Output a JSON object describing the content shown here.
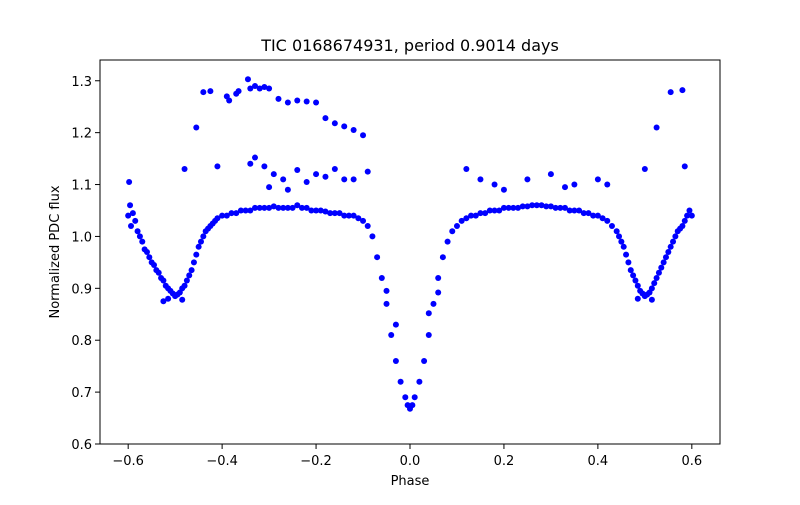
{
  "chart_data": {
    "type": "scatter",
    "title": "TIC 0168674931, period 0.9014 days",
    "xlabel": "Phase",
    "ylabel": "Normalized PDC flux",
    "xlim": [
      -0.66,
      0.66
    ],
    "ylim": [
      0.6,
      1.34
    ],
    "x_ticks": [
      -0.6,
      -0.4,
      -0.2,
      0.0,
      0.2,
      0.4,
      0.6
    ],
    "x_tick_labels": [
      "−0.6",
      "−0.4",
      "−0.2",
      "0.0",
      "0.2",
      "0.4",
      "0.6"
    ],
    "y_ticks": [
      0.6,
      0.7,
      0.8,
      0.9,
      1.0,
      1.1,
      1.2,
      1.3
    ],
    "y_tick_labels": [
      "0.6",
      "0.7",
      "0.8",
      "0.9",
      "1.0",
      "1.1",
      "1.2",
      "1.3"
    ],
    "grid": false,
    "legend": "none",
    "marker_color": "#0000ff",
    "series": [
      {
        "points": [
          [
            -0.6,
            1.04
          ],
          [
            -0.598,
            1.105
          ],
          [
            -0.596,
            1.06
          ],
          [
            -0.594,
            1.02
          ],
          [
            -0.59,
            1.045
          ],
          [
            -0.585,
            1.03
          ],
          [
            -0.58,
            1.01
          ],
          [
            -0.575,
            1.0
          ],
          [
            -0.57,
            0.99
          ],
          [
            -0.565,
            0.975
          ],
          [
            -0.56,
            0.97
          ],
          [
            -0.555,
            0.96
          ],
          [
            -0.55,
            0.95
          ],
          [
            -0.545,
            0.945
          ],
          [
            -0.54,
            0.935
          ],
          [
            -0.535,
            0.93
          ],
          [
            -0.53,
            0.92
          ],
          [
            -0.525,
            0.915
          ],
          [
            -0.52,
            0.905
          ],
          [
            -0.515,
            0.9
          ],
          [
            -0.51,
            0.895
          ],
          [
            -0.505,
            0.89
          ],
          [
            -0.5,
            0.885
          ],
          [
            -0.495,
            0.888
          ],
          [
            -0.49,
            0.892
          ],
          [
            -0.485,
            0.9
          ],
          [
            -0.48,
            0.905
          ],
          [
            -0.475,
            0.915
          ],
          [
            -0.47,
            0.925
          ],
          [
            -0.465,
            0.935
          ],
          [
            -0.46,
            0.95
          ],
          [
            -0.455,
            0.965
          ],
          [
            -0.45,
            0.98
          ],
          [
            -0.445,
            0.99
          ],
          [
            -0.44,
            1.0
          ],
          [
            -0.435,
            1.01
          ],
          [
            -0.43,
            1.015
          ],
          [
            -0.425,
            1.02
          ],
          [
            -0.42,
            1.025
          ],
          [
            -0.415,
            1.03
          ],
          [
            -0.41,
            1.035
          ],
          [
            -0.4,
            1.04
          ],
          [
            -0.39,
            1.04
          ],
          [
            -0.38,
            1.045
          ],
          [
            -0.37,
            1.045
          ],
          [
            -0.36,
            1.05
          ],
          [
            -0.35,
            1.05
          ],
          [
            -0.34,
            1.05
          ],
          [
            -0.33,
            1.055
          ],
          [
            -0.32,
            1.055
          ],
          [
            -0.31,
            1.055
          ],
          [
            -0.3,
            1.055
          ],
          [
            -0.29,
            1.058
          ],
          [
            -0.28,
            1.055
          ],
          [
            -0.27,
            1.055
          ],
          [
            -0.26,
            1.055
          ],
          [
            -0.25,
            1.055
          ],
          [
            -0.24,
            1.06
          ],
          [
            -0.23,
            1.055
          ],
          [
            -0.22,
            1.055
          ],
          [
            -0.21,
            1.05
          ],
          [
            -0.2,
            1.05
          ],
          [
            -0.19,
            1.05
          ],
          [
            -0.18,
            1.048
          ],
          [
            -0.17,
            1.045
          ],
          [
            -0.16,
            1.045
          ],
          [
            -0.15,
            1.045
          ],
          [
            -0.14,
            1.04
          ],
          [
            -0.13,
            1.04
          ],
          [
            -0.12,
            1.04
          ],
          [
            -0.11,
            1.035
          ],
          [
            -0.1,
            1.03
          ],
          [
            -0.09,
            1.02
          ],
          [
            -0.08,
            1.0
          ],
          [
            -0.07,
            0.96
          ],
          [
            -0.06,
            0.92
          ],
          [
            -0.05,
            0.87
          ],
          [
            -0.04,
            0.81
          ],
          [
            -0.03,
            0.76
          ],
          [
            -0.02,
            0.72
          ],
          [
            -0.01,
            0.69
          ],
          [
            -0.005,
            0.675
          ],
          [
            0.0,
            0.668
          ],
          [
            0.005,
            0.675
          ],
          [
            0.01,
            0.69
          ],
          [
            0.02,
            0.72
          ],
          [
            0.03,
            0.76
          ],
          [
            0.04,
            0.81
          ],
          [
            0.05,
            0.87
          ],
          [
            0.06,
            0.92
          ],
          [
            0.07,
            0.96
          ],
          [
            0.08,
            0.99
          ],
          [
            0.09,
            1.01
          ],
          [
            0.1,
            1.02
          ],
          [
            0.11,
            1.03
          ],
          [
            0.12,
            1.035
          ],
          [
            0.13,
            1.04
          ],
          [
            0.14,
            1.04
          ],
          [
            0.15,
            1.045
          ],
          [
            0.16,
            1.045
          ],
          [
            0.17,
            1.05
          ],
          [
            0.18,
            1.05
          ],
          [
            0.19,
            1.05
          ],
          [
            0.2,
            1.055
          ],
          [
            0.21,
            1.055
          ],
          [
            0.22,
            1.055
          ],
          [
            0.23,
            1.055
          ],
          [
            0.24,
            1.058
          ],
          [
            0.25,
            1.058
          ],
          [
            0.26,
            1.06
          ],
          [
            0.27,
            1.06
          ],
          [
            0.28,
            1.06
          ],
          [
            0.29,
            1.058
          ],
          [
            0.3,
            1.058
          ],
          [
            0.31,
            1.055
          ],
          [
            0.32,
            1.055
          ],
          [
            0.33,
            1.055
          ],
          [
            0.34,
            1.05
          ],
          [
            0.35,
            1.05
          ],
          [
            0.36,
            1.05
          ],
          [
            0.37,
            1.045
          ],
          [
            0.38,
            1.045
          ],
          [
            0.39,
            1.04
          ],
          [
            0.4,
            1.04
          ],
          [
            0.41,
            1.035
          ],
          [
            0.42,
            1.03
          ],
          [
            0.43,
            1.02
          ],
          [
            0.44,
            1.01
          ],
          [
            0.445,
            1.0
          ],
          [
            0.45,
            0.99
          ],
          [
            0.455,
            0.98
          ],
          [
            0.46,
            0.965
          ],
          [
            0.465,
            0.95
          ],
          [
            0.47,
            0.935
          ],
          [
            0.475,
            0.925
          ],
          [
            0.48,
            0.915
          ],
          [
            0.485,
            0.905
          ],
          [
            0.49,
            0.895
          ],
          [
            0.495,
            0.89
          ],
          [
            0.5,
            0.885
          ],
          [
            0.505,
            0.888
          ],
          [
            0.51,
            0.892
          ],
          [
            0.515,
            0.9
          ],
          [
            0.52,
            0.91
          ],
          [
            0.525,
            0.92
          ],
          [
            0.53,
            0.93
          ],
          [
            0.535,
            0.94
          ],
          [
            0.54,
            0.95
          ],
          [
            0.545,
            0.96
          ],
          [
            0.55,
            0.97
          ],
          [
            0.555,
            0.98
          ],
          [
            0.56,
            0.99
          ],
          [
            0.565,
            1.0
          ],
          [
            0.57,
            1.01
          ],
          [
            0.575,
            1.015
          ],
          [
            0.58,
            1.02
          ],
          [
            0.585,
            1.03
          ],
          [
            0.59,
            1.04
          ],
          [
            0.595,
            1.05
          ],
          [
            0.6,
            1.04
          ],
          [
            -0.525,
            0.875
          ],
          [
            -0.515,
            0.88
          ],
          [
            -0.485,
            0.878
          ],
          [
            0.485,
            0.88
          ],
          [
            0.515,
            0.878
          ],
          [
            -0.48,
            1.13
          ],
          [
            -0.455,
            1.21
          ],
          [
            -0.44,
            1.278
          ],
          [
            -0.425,
            1.28
          ],
          [
            -0.41,
            1.135
          ],
          [
            -0.39,
            1.27
          ],
          [
            -0.385,
            1.262
          ],
          [
            -0.37,
            1.275
          ],
          [
            -0.365,
            1.28
          ],
          [
            -0.345,
            1.303
          ],
          [
            -0.34,
            1.285
          ],
          [
            -0.33,
            1.29
          ],
          [
            -0.32,
            1.285
          ],
          [
            -0.31,
            1.288
          ],
          [
            -0.3,
            1.285
          ],
          [
            -0.28,
            1.265
          ],
          [
            -0.26,
            1.258
          ],
          [
            -0.24,
            1.262
          ],
          [
            -0.22,
            1.26
          ],
          [
            -0.2,
            1.258
          ],
          [
            -0.18,
            1.228
          ],
          [
            -0.16,
            1.218
          ],
          [
            -0.14,
            1.212
          ],
          [
            -0.12,
            1.205
          ],
          [
            -0.1,
            1.195
          ],
          [
            -0.34,
            1.14
          ],
          [
            -0.33,
            1.152
          ],
          [
            -0.31,
            1.135
          ],
          [
            -0.29,
            1.12
          ],
          [
            -0.27,
            1.11
          ],
          [
            -0.24,
            1.128
          ],
          [
            -0.22,
            1.105
          ],
          [
            -0.2,
            1.12
          ],
          [
            -0.18,
            1.115
          ],
          [
            -0.16,
            1.13
          ],
          [
            -0.14,
            1.11
          ],
          [
            -0.12,
            1.11
          ],
          [
            -0.09,
            1.125
          ],
          [
            -0.3,
            1.095
          ],
          [
            -0.26,
            1.09
          ],
          [
            -0.05,
            0.895
          ],
          [
            -0.03,
            0.83
          ],
          [
            0.04,
            0.852
          ],
          [
            0.06,
            0.892
          ],
          [
            0.5,
            1.13
          ],
          [
            0.525,
            1.21
          ],
          [
            0.555,
            1.278
          ],
          [
            0.58,
            1.282
          ],
          [
            0.585,
            1.135
          ],
          [
            0.12,
            1.13
          ],
          [
            0.15,
            1.11
          ],
          [
            0.18,
            1.1
          ],
          [
            0.25,
            1.11
          ],
          [
            0.3,
            1.12
          ],
          [
            0.35,
            1.1
          ],
          [
            0.4,
            1.11
          ],
          [
            0.2,
            1.09
          ],
          [
            0.33,
            1.095
          ],
          [
            0.42,
            1.1
          ]
        ]
      }
    ]
  }
}
